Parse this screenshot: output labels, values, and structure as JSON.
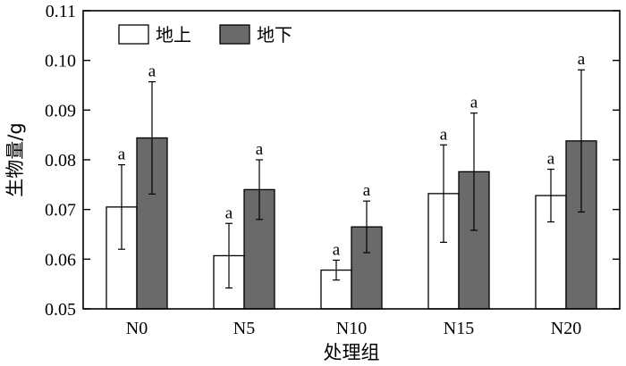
{
  "chart_data": {
    "type": "bar",
    "title": "",
    "xlabel": "处理组",
    "ylabel": "生物量/g",
    "ylim": [
      0.05,
      0.11
    ],
    "yticks": [
      "0.05",
      "0.06",
      "0.07",
      "0.08",
      "0.09",
      "0.10",
      "0.11"
    ],
    "categories": [
      "N0",
      "N5",
      "N10",
      "N15",
      "N20"
    ],
    "legend_position": "top-left",
    "grid": false,
    "series": [
      {
        "name": "地上",
        "color": "#ffffff",
        "values": [
          0.0705,
          0.0607,
          0.0578,
          0.0732,
          0.0728
        ],
        "errors": [
          0.0085,
          0.0065,
          0.002,
          0.0098,
          0.0053
        ],
        "labels": [
          "a",
          "a",
          "a",
          "a",
          "a"
        ]
      },
      {
        "name": "地下",
        "color": "#6a6a6a",
        "values": [
          0.0844,
          0.074,
          0.0665,
          0.0776,
          0.0838
        ],
        "errors": [
          0.0113,
          0.006,
          0.0052,
          0.0118,
          0.0143
        ],
        "labels": [
          "a",
          "a",
          "a",
          "a",
          "a"
        ]
      }
    ]
  }
}
